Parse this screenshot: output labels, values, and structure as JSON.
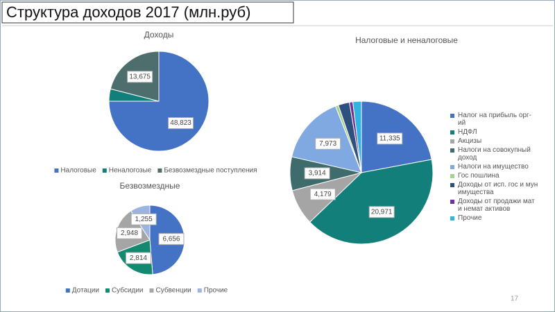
{
  "title": "Структура доходов 2017 (млн.руб)",
  "page_number": "17",
  "chart_data": [
    {
      "type": "pie",
      "title": "Доходы",
      "categories": [
        "Налоговые",
        "Неналогозые",
        "Безвозмездные поступления"
      ],
      "values": [
        48823,
        2600,
        13675
      ],
      "value_labels": [
        "48,823",
        null,
        "13,675"
      ],
      "colors": [
        "#4472c4",
        "#137f7a",
        "#4e6e6e"
      ],
      "legend": "bottom"
    },
    {
      "type": "pie",
      "title": "Налоговые и неналоговые",
      "categories": [
        "Налог на прибыль орг-ий",
        "НДФЛ",
        "Акцизы",
        "Налоги на совокупный доход",
        "Налоги на имущество",
        "Гос пошлина",
        "Доходы от исп. гос и мун имущества",
        "Доходы от продажи мат и немат активов",
        "Прочие"
      ],
      "values": [
        11335,
        20971,
        4179,
        3914,
        7973,
        350,
        1300,
        400,
        994
      ],
      "value_labels": [
        "11,335",
        "20,971",
        "4,179",
        "3,914",
        "7,973",
        null,
        null,
        null,
        null
      ],
      "colors": [
        "#4472c4",
        "#137f7a",
        "#a5a5a5",
        "#3e6b6b",
        "#7fa9e0",
        "#a8d08d",
        "#2f4f7f",
        "#7030a0",
        "#2fb5e0"
      ],
      "legend": "right"
    },
    {
      "type": "pie",
      "title": "Безвозмездные",
      "categories": [
        "Дотации",
        "Субсидии",
        "Субвенции",
        "Прочие"
      ],
      "values": [
        6656,
        2814,
        2948,
        1255
      ],
      "value_labels": [
        "6,656",
        "2,814",
        "2,948",
        "1,255"
      ],
      "colors": [
        "#4472c4",
        "#138a70",
        "#a5a5a5",
        "#9db4e0"
      ],
      "legend": "bottom"
    }
  ]
}
